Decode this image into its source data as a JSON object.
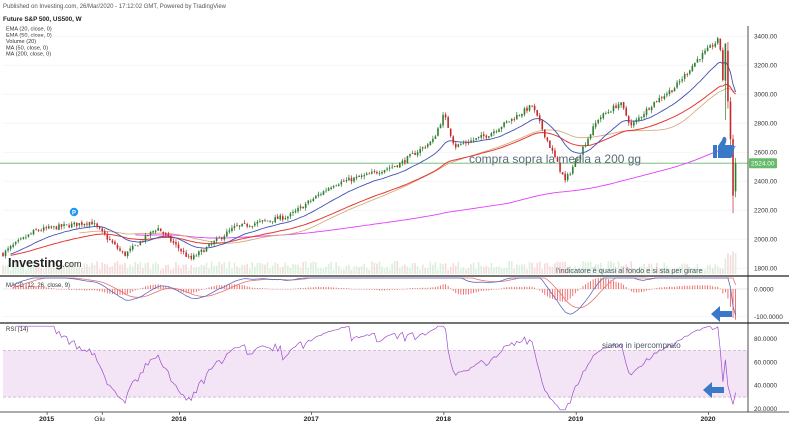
{
  "header": {
    "published": "Published on Investing.com, 26/Mar/2020 - 17:12:02 GMT, Powered by TradingView",
    "symbol": "Future S&P 500, US500, W"
  },
  "indicators": [
    "EMA (20, close, 0)",
    "EMA (50, close, 0)",
    "Volume (20)",
    "MA (50, close, 0)",
    "MA (200, close, 0)"
  ],
  "brand": {
    "name": "Investing",
    "suffix": ".com"
  },
  "annotations": {
    "main": "compra sopra la media a 200 gg",
    "macd_note": "l'indicatore è quasi al fondo e si sta per girare",
    "rsi_note": "siamo in ipercomprato"
  },
  "price_label": "2524.00",
  "macd_title": "MACD (12, 26, close, 9)",
  "rsi_title": "RSI (14)",
  "colors": {
    "up": "#2e7d32",
    "down": "#c62828",
    "ema20": "#3f51b5",
    "ema50": "#e53935",
    "ma200": "#e040fb",
    "ma50": "#d4a373",
    "hline": "#66bb6a",
    "arrow": "#3a78c8",
    "rsi_band": "#f3e5f5"
  },
  "chart_data": [
    {
      "type": "candlestick",
      "title": "Future S&P 500, US500, W",
      "x": [
        "2015",
        "Giu",
        "2016",
        "2017",
        "2018",
        "2019",
        "2020"
      ],
      "y_ticks": [
        1800,
        2000,
        2200,
        2400,
        2600,
        2800,
        3000,
        3200,
        3400
      ],
      "ylim": [
        1760,
        3470
      ],
      "anchors": [
        {
          "date": "2014-09",
          "close": 1900
        },
        {
          "date": "2014-10",
          "close": 1960
        },
        {
          "date": "2014-12",
          "close": 2060
        },
        {
          "date": "2015-05",
          "close": 2120
        },
        {
          "date": "2015-08",
          "close": 1890
        },
        {
          "date": "2015-11",
          "close": 2080
        },
        {
          "date": "2016-02",
          "close": 1860
        },
        {
          "date": "2016-06",
          "close": 2080
        },
        {
          "date": "2016-11",
          "close": 2160
        },
        {
          "date": "2017-03",
          "close": 2380
        },
        {
          "date": "2017-06",
          "close": 2440
        },
        {
          "date": "2017-09",
          "close": 2520
        },
        {
          "date": "2017-12",
          "close": 2680
        },
        {
          "date": "2018-01",
          "close": 2860
        },
        {
          "date": "2018-02",
          "close": 2640
        },
        {
          "date": "2018-05",
          "close": 2720
        },
        {
          "date": "2018-09",
          "close": 2920
        },
        {
          "date": "2018-12",
          "close": 2400
        },
        {
          "date": "2019-03",
          "close": 2830
        },
        {
          "date": "2019-05",
          "close": 2940
        },
        {
          "date": "2019-06",
          "close": 2780
        },
        {
          "date": "2019-08",
          "close": 2940
        },
        {
          "date": "2019-10",
          "close": 3050
        },
        {
          "date": "2019-12",
          "close": 3240
        },
        {
          "date": "2020-02",
          "close": 3380
        },
        {
          "date": "2020-03",
          "close": 2480
        }
      ],
      "current_price": 2524.0,
      "series": [
        "EMA (20, close, 0)",
        "EMA (50, close, 0)",
        "MA (50, close, 0)",
        "MA (200, close, 0)"
      ]
    },
    {
      "type": "line",
      "title": "MACD (12, 26, close, 9)",
      "y_ticks": [
        0,
        -100
      ],
      "ylim": [
        -120,
        40
      ]
    },
    {
      "type": "line",
      "title": "RSI (14)",
      "y_ticks": [
        20,
        40,
        60,
        80
      ],
      "ylim": [
        18,
        92
      ],
      "band": [
        30,
        70
      ]
    }
  ]
}
